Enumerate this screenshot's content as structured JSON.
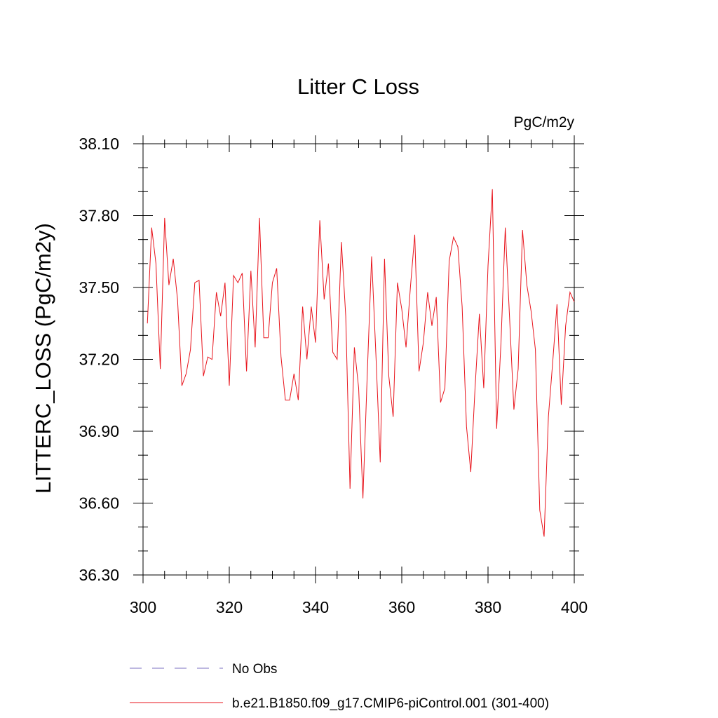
{
  "chart_data": {
    "type": "line",
    "title": "Litter C Loss",
    "units": "PgC/m2y",
    "xlabel": "",
    "ylabel": "LITTERC_LOSS  (PgC/m2y)",
    "xlim": [
      300,
      400
    ],
    "ylim": [
      36.3,
      38.1
    ],
    "x_ticks": [
      300,
      320,
      340,
      360,
      380,
      400
    ],
    "x_tick_labels": [
      "300",
      "320",
      "340",
      "360",
      "380",
      "400"
    ],
    "y_ticks": [
      36.3,
      36.6,
      36.9,
      37.2,
      37.5,
      37.8,
      38.1
    ],
    "y_tick_labels": [
      "36.30",
      "36.60",
      "36.90",
      "37.20",
      "37.50",
      "37.80",
      "38.10"
    ],
    "grid": false,
    "legend_position": "bottom",
    "colors": {
      "model": "#e8141c",
      "obs": "#7b6fc0"
    },
    "series": [
      {
        "name": "b.e21.B1850.f09_g17.CMIP6-piControl.001 (301-400)",
        "style": "solid",
        "x": [
          301,
          302,
          303,
          304,
          305,
          306,
          307,
          308,
          309,
          310,
          311,
          312,
          313,
          314,
          315,
          316,
          317,
          318,
          319,
          320,
          321,
          322,
          323,
          324,
          325,
          326,
          327,
          328,
          329,
          330,
          331,
          332,
          333,
          334,
          335,
          336,
          337,
          338,
          339,
          340,
          341,
          342,
          343,
          344,
          345,
          346,
          347,
          348,
          349,
          350,
          351,
          352,
          353,
          354,
          355,
          356,
          357,
          358,
          359,
          360,
          361,
          362,
          363,
          364,
          365,
          366,
          367,
          368,
          369,
          370,
          371,
          372,
          373,
          374,
          375,
          376,
          377,
          378,
          379,
          380,
          381,
          382,
          383,
          384,
          385,
          386,
          387,
          388,
          389,
          390,
          391,
          392,
          393,
          394,
          395,
          396,
          397,
          398,
          399,
          400
        ],
        "values": [
          37.35,
          37.75,
          37.6,
          37.16,
          37.79,
          37.51,
          37.62,
          37.45,
          37.09,
          37.14,
          37.24,
          37.52,
          37.53,
          37.13,
          37.21,
          37.2,
          37.48,
          37.38,
          37.52,
          37.09,
          37.55,
          37.52,
          37.56,
          37.15,
          37.57,
          37.25,
          37.79,
          37.29,
          37.29,
          37.52,
          37.58,
          37.21,
          37.03,
          37.03,
          37.14,
          37.03,
          37.42,
          37.2,
          37.42,
          37.27,
          37.78,
          37.45,
          37.6,
          37.23,
          37.2,
          37.69,
          37.38,
          36.66,
          37.25,
          37.08,
          36.62,
          37.14,
          37.63,
          37.22,
          36.77,
          37.62,
          37.13,
          36.96,
          37.52,
          37.41,
          37.25,
          37.5,
          37.72,
          37.15,
          37.27,
          37.48,
          37.34,
          37.46,
          37.02,
          37.08,
          37.61,
          37.71,
          37.67,
          37.42,
          36.92,
          36.73,
          37.08,
          37.39,
          37.08,
          37.59,
          37.91,
          36.91,
          37.27,
          37.75,
          37.37,
          36.99,
          37.16,
          37.74,
          37.51,
          37.4,
          37.24,
          36.57,
          36.46,
          36.96,
          37.19,
          37.43,
          37.01,
          37.34,
          37.48,
          37.44
        ]
      },
      {
        "name": "No Obs",
        "style": "dashed",
        "x": [],
        "values": []
      }
    ]
  }
}
